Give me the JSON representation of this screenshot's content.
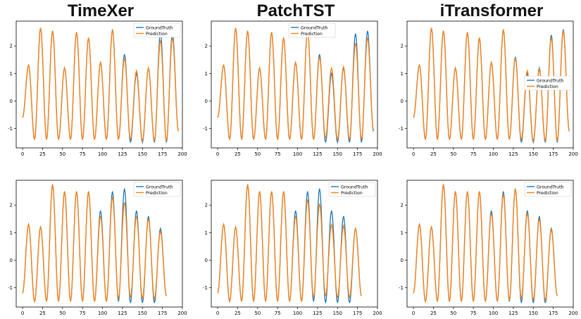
{
  "titles": [
    "TimeXer",
    "PatchTST",
    "iTransformer"
  ],
  "legend": {
    "ground_truth": "GroundTruth",
    "prediction": "Prediction"
  },
  "colors": {
    "ground_truth": "#1f77b4",
    "prediction": "#ff7f0e"
  },
  "chart_data": [
    {
      "type": "line",
      "model": "TimeXer",
      "row": 1,
      "xlim": [
        -8,
        200
      ],
      "ylim": [
        -1.7,
        2.9
      ],
      "xticks": [
        0,
        25,
        50,
        75,
        100,
        125,
        150,
        175,
        200
      ],
      "yticks": [
        -1,
        0,
        1,
        2
      ],
      "legend_loc": "upper right",
      "series": [
        {
          "name": "GroundTruth",
          "peaks": [
            1.3,
            2.65,
            2.55,
            1.2,
            2.5,
            2.3,
            1.4,
            2.6,
            1.7,
            1.0,
            1.2,
            2.5,
            2.5
          ],
          "troughs": [
            -0.6,
            -1.4,
            -1.4,
            -1.4,
            -1.4,
            -1.4,
            -1.4,
            -1.4,
            -1.4,
            -1.5,
            -1.5,
            -1.5,
            -1.5,
            -1.1
          ]
        },
        {
          "name": "Prediction",
          "peaks": [
            1.3,
            2.65,
            2.55,
            1.2,
            2.5,
            2.3,
            1.4,
            2.6,
            1.55,
            1.1,
            1.2,
            2.2,
            2.3
          ],
          "troughs": [
            -0.6,
            -1.4,
            -1.4,
            -1.4,
            -1.4,
            -1.4,
            -1.4,
            -1.4,
            -1.4,
            -1.4,
            -1.45,
            -1.45,
            -1.45,
            -1.1
          ]
        }
      ]
    },
    {
      "type": "line",
      "model": "PatchTST",
      "row": 1,
      "xlim": [
        -8,
        200
      ],
      "ylim": [
        -1.7,
        2.9
      ],
      "xticks": [
        0,
        25,
        50,
        75,
        100,
        125,
        150,
        175,
        200
      ],
      "yticks": [
        -1,
        0,
        1,
        2
      ],
      "legend_loc": "upper center",
      "series": [
        {
          "name": "GroundTruth",
          "peaks": [
            1.3,
            2.65,
            2.55,
            1.2,
            2.5,
            2.3,
            1.4,
            2.6,
            1.7,
            1.0,
            1.2,
            2.45,
            2.55
          ],
          "troughs": [
            -0.6,
            -1.4,
            -1.4,
            -1.4,
            -1.4,
            -1.4,
            -1.4,
            -1.4,
            -1.4,
            -1.5,
            -1.5,
            -1.5,
            -1.5,
            -1.1
          ]
        },
        {
          "name": "Prediction",
          "peaks": [
            1.3,
            2.65,
            2.55,
            1.2,
            2.5,
            2.3,
            1.4,
            2.6,
            1.6,
            1.2,
            1.25,
            2.1,
            2.3
          ],
          "troughs": [
            -0.6,
            -1.4,
            -1.4,
            -1.4,
            -1.4,
            -1.4,
            -1.4,
            -1.4,
            -1.4,
            -1.35,
            -1.4,
            -1.4,
            -1.4,
            -1.05
          ]
        }
      ]
    },
    {
      "type": "line",
      "model": "iTransformer",
      "row": 1,
      "xlim": [
        -8,
        200
      ],
      "ylim": [
        -1.7,
        2.9
      ],
      "xticks": [
        0,
        25,
        50,
        75,
        100,
        125,
        150,
        175,
        200
      ],
      "yticks": [
        -1,
        0,
        1,
        2
      ],
      "legend_loc": "center right",
      "series": [
        {
          "name": "GroundTruth",
          "peaks": [
            1.3,
            2.65,
            2.55,
            1.2,
            2.5,
            2.3,
            1.4,
            2.6,
            1.6,
            1.0,
            1.2,
            2.4,
            2.6
          ],
          "troughs": [
            -0.6,
            -1.4,
            -1.4,
            -1.4,
            -1.4,
            -1.4,
            -1.4,
            -1.4,
            -1.4,
            -1.5,
            -1.5,
            -1.5,
            -1.5,
            -1.1
          ]
        },
        {
          "name": "Prediction",
          "peaks": [
            1.3,
            2.65,
            2.55,
            1.2,
            2.5,
            2.3,
            1.4,
            2.6,
            1.55,
            1.1,
            1.15,
            2.3,
            2.55
          ],
          "troughs": [
            -0.6,
            -1.4,
            -1.4,
            -1.4,
            -1.4,
            -1.4,
            -1.4,
            -1.4,
            -1.4,
            -1.4,
            -1.45,
            -1.45,
            -1.45,
            -1.1
          ]
        }
      ]
    },
    {
      "type": "line",
      "model": "TimeXer",
      "row": 2,
      "xlim": [
        -8,
        200
      ],
      "ylim": [
        -1.7,
        2.9
      ],
      "xticks": [
        0,
        25,
        50,
        75,
        100,
        125,
        150,
        175,
        200
      ],
      "yticks": [
        -1,
        0,
        1,
        2
      ],
      "legend_loc": "upper right",
      "series": [
        {
          "name": "GroundTruth",
          "peaks": [
            1.3,
            1.2,
            2.75,
            2.5,
            2.5,
            2.5,
            1.8,
            2.5,
            2.6,
            1.8,
            1.6,
            1.15
          ],
          "troughs": [
            -1.2,
            -1.5,
            -1.5,
            -1.5,
            -1.5,
            -1.5,
            -1.5,
            -1.5,
            -1.5,
            -1.55,
            -1.55,
            -1.55,
            -1.3
          ]
        },
        {
          "name": "Prediction",
          "peaks": [
            1.3,
            1.2,
            2.75,
            2.5,
            2.5,
            2.5,
            1.6,
            2.3,
            2.1,
            1.6,
            1.5,
            1.05
          ],
          "troughs": [
            -1.2,
            -1.5,
            -1.5,
            -1.5,
            -1.5,
            -1.5,
            -1.5,
            -1.5,
            -1.4,
            -1.35,
            -1.4,
            -1.4,
            -1.3
          ]
        }
      ]
    },
    {
      "type": "line",
      "model": "PatchTST",
      "row": 2,
      "xlim": [
        -8,
        200
      ],
      "ylim": [
        -1.7,
        2.9
      ],
      "xticks": [
        0,
        25,
        50,
        75,
        100,
        125,
        150,
        175,
        200
      ],
      "yticks": [
        -1,
        0,
        1,
        2
      ],
      "legend_loc": "upper right",
      "series": [
        {
          "name": "GroundTruth",
          "peaks": [
            1.3,
            1.2,
            2.75,
            2.5,
            2.5,
            2.5,
            1.8,
            2.5,
            2.6,
            1.8,
            1.6,
            1.15
          ],
          "troughs": [
            -1.2,
            -1.5,
            -1.5,
            -1.5,
            -1.5,
            -1.5,
            -1.5,
            -1.5,
            -1.5,
            -1.55,
            -1.55,
            -1.55,
            -1.3
          ]
        },
        {
          "name": "Prediction",
          "peaks": [
            1.3,
            1.2,
            2.75,
            2.5,
            2.5,
            2.5,
            1.6,
            2.2,
            2.05,
            1.3,
            1.25,
            1.15
          ],
          "troughs": [
            -1.2,
            -1.5,
            -1.5,
            -1.5,
            -1.5,
            -1.5,
            -1.5,
            -1.5,
            -1.35,
            -1.3,
            -1.35,
            -1.35,
            -1.3
          ]
        }
      ]
    },
    {
      "type": "line",
      "model": "iTransformer",
      "row": 2,
      "xlim": [
        -8,
        200
      ],
      "ylim": [
        -1.7,
        2.9
      ],
      "xticks": [
        0,
        25,
        50,
        75,
        100,
        125,
        150,
        175,
        200
      ],
      "yticks": [
        -1,
        0,
        1,
        2
      ],
      "legend_loc": "upper right",
      "series": [
        {
          "name": "GroundTruth",
          "peaks": [
            1.3,
            1.2,
            2.75,
            2.5,
            2.5,
            2.5,
            1.8,
            2.5,
            2.6,
            1.8,
            1.6,
            1.15
          ],
          "troughs": [
            -1.2,
            -1.5,
            -1.5,
            -1.5,
            -1.5,
            -1.5,
            -1.5,
            -1.5,
            -1.5,
            -1.55,
            -1.55,
            -1.55,
            -1.3
          ]
        },
        {
          "name": "Prediction",
          "peaks": [
            1.3,
            1.2,
            2.75,
            2.5,
            2.5,
            2.5,
            1.7,
            2.4,
            2.6,
            1.7,
            1.5,
            1.1
          ],
          "troughs": [
            -1.2,
            -1.5,
            -1.5,
            -1.5,
            -1.5,
            -1.5,
            -1.5,
            -1.5,
            -1.45,
            -1.4,
            -1.45,
            -1.45,
            -1.3
          ]
        }
      ]
    }
  ]
}
